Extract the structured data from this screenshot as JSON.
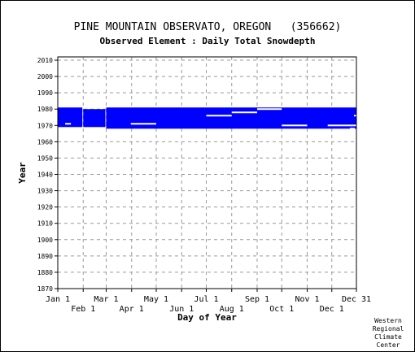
{
  "chart_data": {
    "type": "bar",
    "title": "PINE MOUNTAIN OBSERVATO, OREGON   (356662)",
    "subtitle": "Observed Element : Daily Total Snowdepth",
    "xlabel": "Day of Year",
    "ylabel": "Year",
    "ylim": [
      1870,
      2012
    ],
    "yticks": [
      1870,
      1880,
      1890,
      1900,
      1910,
      1920,
      1930,
      1940,
      1950,
      1960,
      1970,
      1980,
      1990,
      2000,
      2010
    ],
    "xlim": [
      1,
      365
    ],
    "xticks": [
      {
        "label": "Jan 1",
        "day": 1,
        "row": 1
      },
      {
        "label": "Feb 1",
        "day": 32,
        "row": 2
      },
      {
        "label": "Mar 1",
        "day": 60,
        "row": 1
      },
      {
        "label": "Apr 1",
        "day": 91,
        "row": 2
      },
      {
        "label": "May 1",
        "day": 121,
        "row": 1
      },
      {
        "label": "Jun 1",
        "day": 152,
        "row": 2
      },
      {
        "label": "Jul 1",
        "day": 182,
        "row": 1
      },
      {
        "label": "Aug 1",
        "day": 213,
        "row": 2
      },
      {
        "label": "Sep 1",
        "day": 244,
        "row": 1
      },
      {
        "label": "Oct 1",
        "day": 274,
        "row": 2
      },
      {
        "label": "Nov 1",
        "day": 305,
        "row": 1
      },
      {
        "label": "Dec 1",
        "day": 335,
        "row": 2
      },
      {
        "label": "Dec 31",
        "day": 365,
        "row": 1
      }
    ],
    "grid": true,
    "series": [
      {
        "values": [
          {
            "day_start": 1,
            "day_end": 31,
            "year_start": 1969,
            "year_end": 1981
          },
          {
            "day_start": 32,
            "day_end": 59,
            "year_start": 1969,
            "year_end": 1980
          },
          {
            "day_start": 60,
            "day_end": 365,
            "year_start": 1968,
            "year_end": 1981
          }
        ]
      }
    ],
    "gaps": [
      {
        "day_start": 10,
        "day_end": 17,
        "year": 1971
      },
      {
        "day_start": 90,
        "day_end": 121,
        "year": 1971
      },
      {
        "day_start": 182,
        "day_end": 213,
        "year": 1976
      },
      {
        "day_start": 213,
        "day_end": 244,
        "year": 1978
      },
      {
        "day_start": 244,
        "day_end": 274,
        "year": 1980
      },
      {
        "day_start": 274,
        "day_end": 305,
        "year": 1970
      },
      {
        "day_start": 330,
        "day_end": 365,
        "year": 1970
      },
      {
        "day_start": 357,
        "day_end": 363,
        "year": 1968
      },
      {
        "day_start": 362,
        "day_end": 365,
        "year": 1976
      }
    ],
    "colors": {
      "data": "#0000ff",
      "grid": "#999999",
      "axis": "#000000"
    }
  },
  "credit": [
    "Western",
    "Regional",
    "Climate",
    "Center"
  ]
}
